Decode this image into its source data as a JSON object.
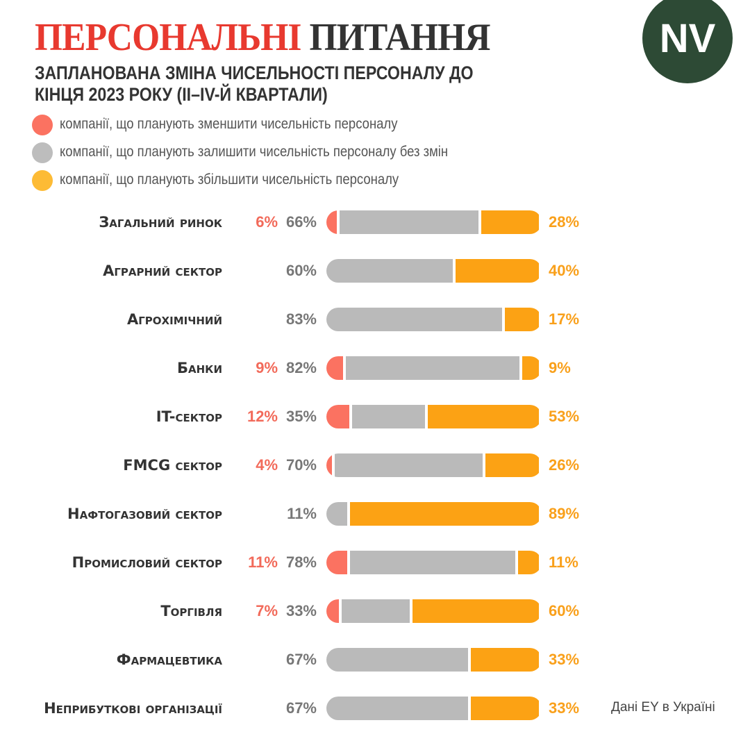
{
  "header": {
    "title_red": "ПЕРСОНАЛЬНІ",
    "title_dark": "ПИТАННЯ",
    "subtitle": "ЗАПЛАНОВАНА ЗМІНА ЧИСЕЛЬНОСТІ ПЕРСОНАЛУ ДО КІНЦЯ 2023 РОКУ (II–IV-Й КВАРТАЛИ)",
    "logo": "NV"
  },
  "source": "Дані EY в Україні",
  "colors": {
    "decrease": "#fb7261",
    "same": "#bababa",
    "increase": "#fca214"
  },
  "chart_data": {
    "type": "bar",
    "stacked": true,
    "orientation": "horizontal",
    "unit": "%",
    "title": "ЗАПЛАНОВАНА ЗМІНА ЧИСЕЛЬНОСТІ ПЕРСОНАЛУ ДО КІНЦЯ 2023 РОКУ (II–IV-Й КВАРТАЛИ)",
    "legend": [
      "компанії, що планують зменшити чисельність персоналу",
      "компанії, що планують залишити чисельність персоналу без змін",
      "компанії, що планують збільшити чисельність персоналу"
    ],
    "categories": [
      "Загальний ринок",
      "Аграрний сектор",
      "Агрохімічний",
      "Банки",
      "IT-сектор",
      "FMCG сектор",
      "Нафтогазовий сектор",
      "Промисловий сектор",
      "Торгівля",
      "Фармацевтика",
      "Неприбуткові організації"
    ],
    "series": [
      {
        "name": "decrease",
        "values": [
          6,
          0,
          0,
          9,
          12,
          4,
          0,
          11,
          7,
          0,
          0
        ]
      },
      {
        "name": "same",
        "values": [
          66,
          60,
          83,
          82,
          35,
          70,
          11,
          78,
          33,
          67,
          67
        ]
      },
      {
        "name": "increase",
        "values": [
          28,
          40,
          17,
          9,
          53,
          26,
          89,
          11,
          60,
          33,
          33
        ]
      }
    ]
  }
}
